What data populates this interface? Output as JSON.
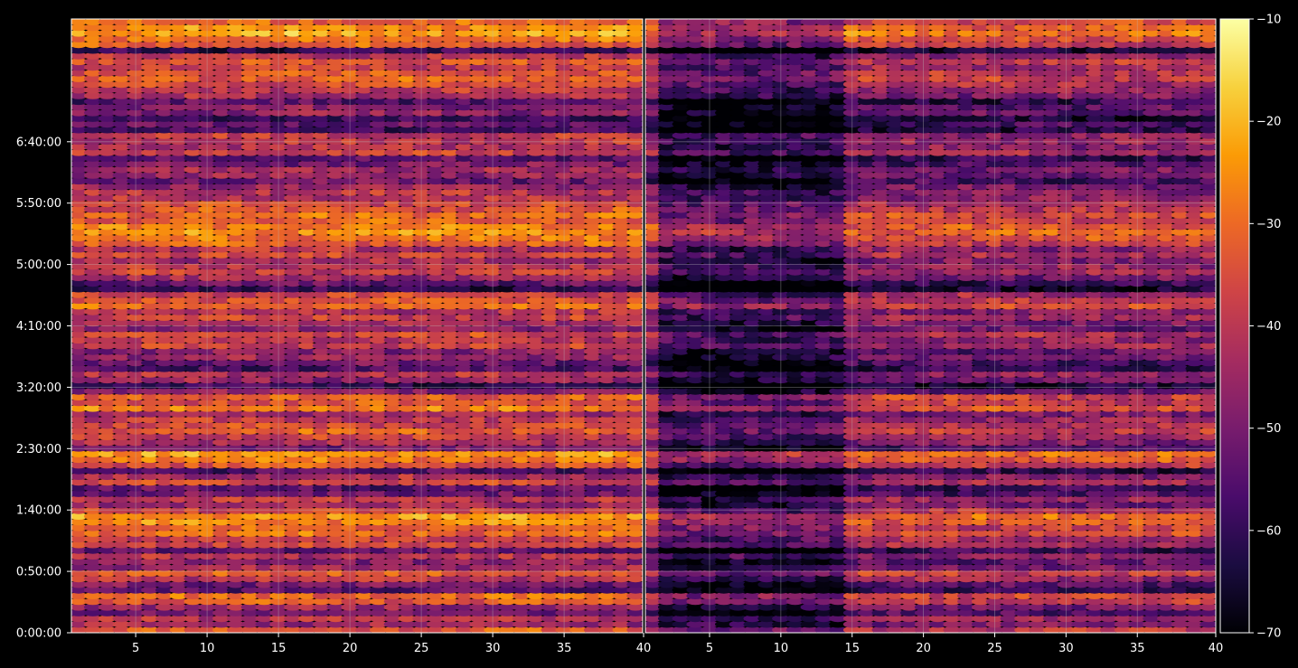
{
  "chart_data": [
    {
      "type": "heatmap",
      "panel": "left",
      "x_range": [
        1,
        40
      ],
      "x_ticks": [
        "5",
        "10",
        "15",
        "20",
        "25",
        "30",
        "35",
        "40"
      ],
      "y_unit": "h:mm:ss",
      "y_range_seconds": [
        0,
        30000
      ],
      "y_ticks": [
        "0:00:00",
        "0:50:00",
        "1:40:00",
        "2:30:00",
        "3:20:00",
        "4:10:00",
        "5:00:00",
        "5:50:00",
        "6:40:00"
      ],
      "grid": true,
      "band_levels": [
        -33,
        -44,
        -40,
        -50,
        -45,
        -33,
        -31,
        -55,
        -50,
        -40,
        -32,
        -45,
        -48,
        -42,
        -55,
        -37,
        -38,
        -30,
        -32,
        -26,
        -24,
        -36,
        -44,
        -40,
        -52,
        -54,
        -37,
        -43,
        -56,
        -34,
        -28,
        -24,
        -50,
        -43,
        -38,
        -32,
        -36,
        -40,
        -45,
        -28,
        -34,
        -31,
        -48,
        -60,
        -46,
        -42,
        -56,
        -52,
        -46,
        -48,
        -38,
        -41,
        -36,
        -47,
        -44,
        -38,
        -42,
        -30,
        -34,
        -38,
        -60,
        -54,
        -45,
        -38,
        -40,
        -44,
        -36,
        -42,
        -32,
        -29,
        -25,
        -27,
        -32,
        -30,
        -34,
        -36,
        -42,
        -40,
        -45,
        -52,
        -46,
        -44,
        -50,
        -55,
        -38,
        -42,
        -40,
        -40,
        -58,
        -52,
        -60,
        -47,
        -48,
        -55,
        -43,
        -40,
        -36,
        -32,
        -34,
        -38,
        -34,
        -40,
        -60,
        -32,
        -28,
        -22,
        -26,
        -30
      ]
    },
    {
      "type": "heatmap",
      "panel": "right",
      "x_range": [
        1,
        40
      ],
      "x_ticks": [
        "40",
        "5",
        "10",
        "15",
        "20",
        "25",
        "30",
        "35",
        "40"
      ],
      "y_unit": "h:mm:ss",
      "y_range_seconds": [
        0,
        30000
      ],
      "y_ticks": [
        "0:00:00",
        "0:50:00",
        "1:40:00",
        "2:30:00",
        "3:20:00",
        "4:10:00",
        "5:00:00",
        "5:50:00",
        "6:40:00"
      ],
      "grid": true,
      "band_levels": [
        -40,
        -50,
        -46,
        -56,
        -50,
        -38,
        -36,
        -60,
        -55,
        -46,
        -38,
        -50,
        -54,
        -47,
        -60,
        -43,
        -44,
        -36,
        -38,
        -32,
        -30,
        -42,
        -50,
        -46,
        -57,
        -59,
        -43,
        -49,
        -61,
        -40,
        -34,
        -30,
        -56,
        -49,
        -44,
        -38,
        -42,
        -46,
        -51,
        -34,
        -40,
        -37,
        -54,
        -65,
        -52,
        -48,
        -61,
        -58,
        -52,
        -54,
        -44,
        -47,
        -42,
        -53,
        -50,
        -44,
        -48,
        -36,
        -40,
        -44,
        -65,
        -60,
        -51,
        -44,
        -46,
        -50,
        -42,
        -48,
        -38,
        -35,
        -31,
        -33,
        -38,
        -36,
        -40,
        -42,
        -48,
        -46,
        -51,
        -58,
        -52,
        -50,
        -56,
        -61,
        -44,
        -48,
        -46,
        -46,
        -63,
        -58,
        -65,
        -53,
        -54,
        -61,
        -49,
        -46,
        -42,
        -38,
        -40,
        -44,
        -40,
        -46,
        -65,
        -38,
        -34,
        -28,
        -32,
        -36
      ]
    }
  ],
  "colorbar": {
    "min": -70,
    "max": -10,
    "tick_values": [
      -70,
      -60,
      -50,
      -40,
      -30,
      -20,
      -10
    ],
    "tick_labels": [
      "−70",
      "−60",
      "−50",
      "−40",
      "−30",
      "−20",
      "−10"
    ],
    "colormap": "inferno",
    "colormap_stops": [
      "#000004",
      "#1b0c41",
      "#4a0c6b",
      "#781c6d",
      "#a52c60",
      "#cf4446",
      "#ed6925",
      "#fb9b06",
      "#f7d13d",
      "#fcffa4"
    ]
  },
  "colors": {
    "background": "#000000",
    "text": "#ffffff",
    "grid": "#bbbbbb"
  }
}
